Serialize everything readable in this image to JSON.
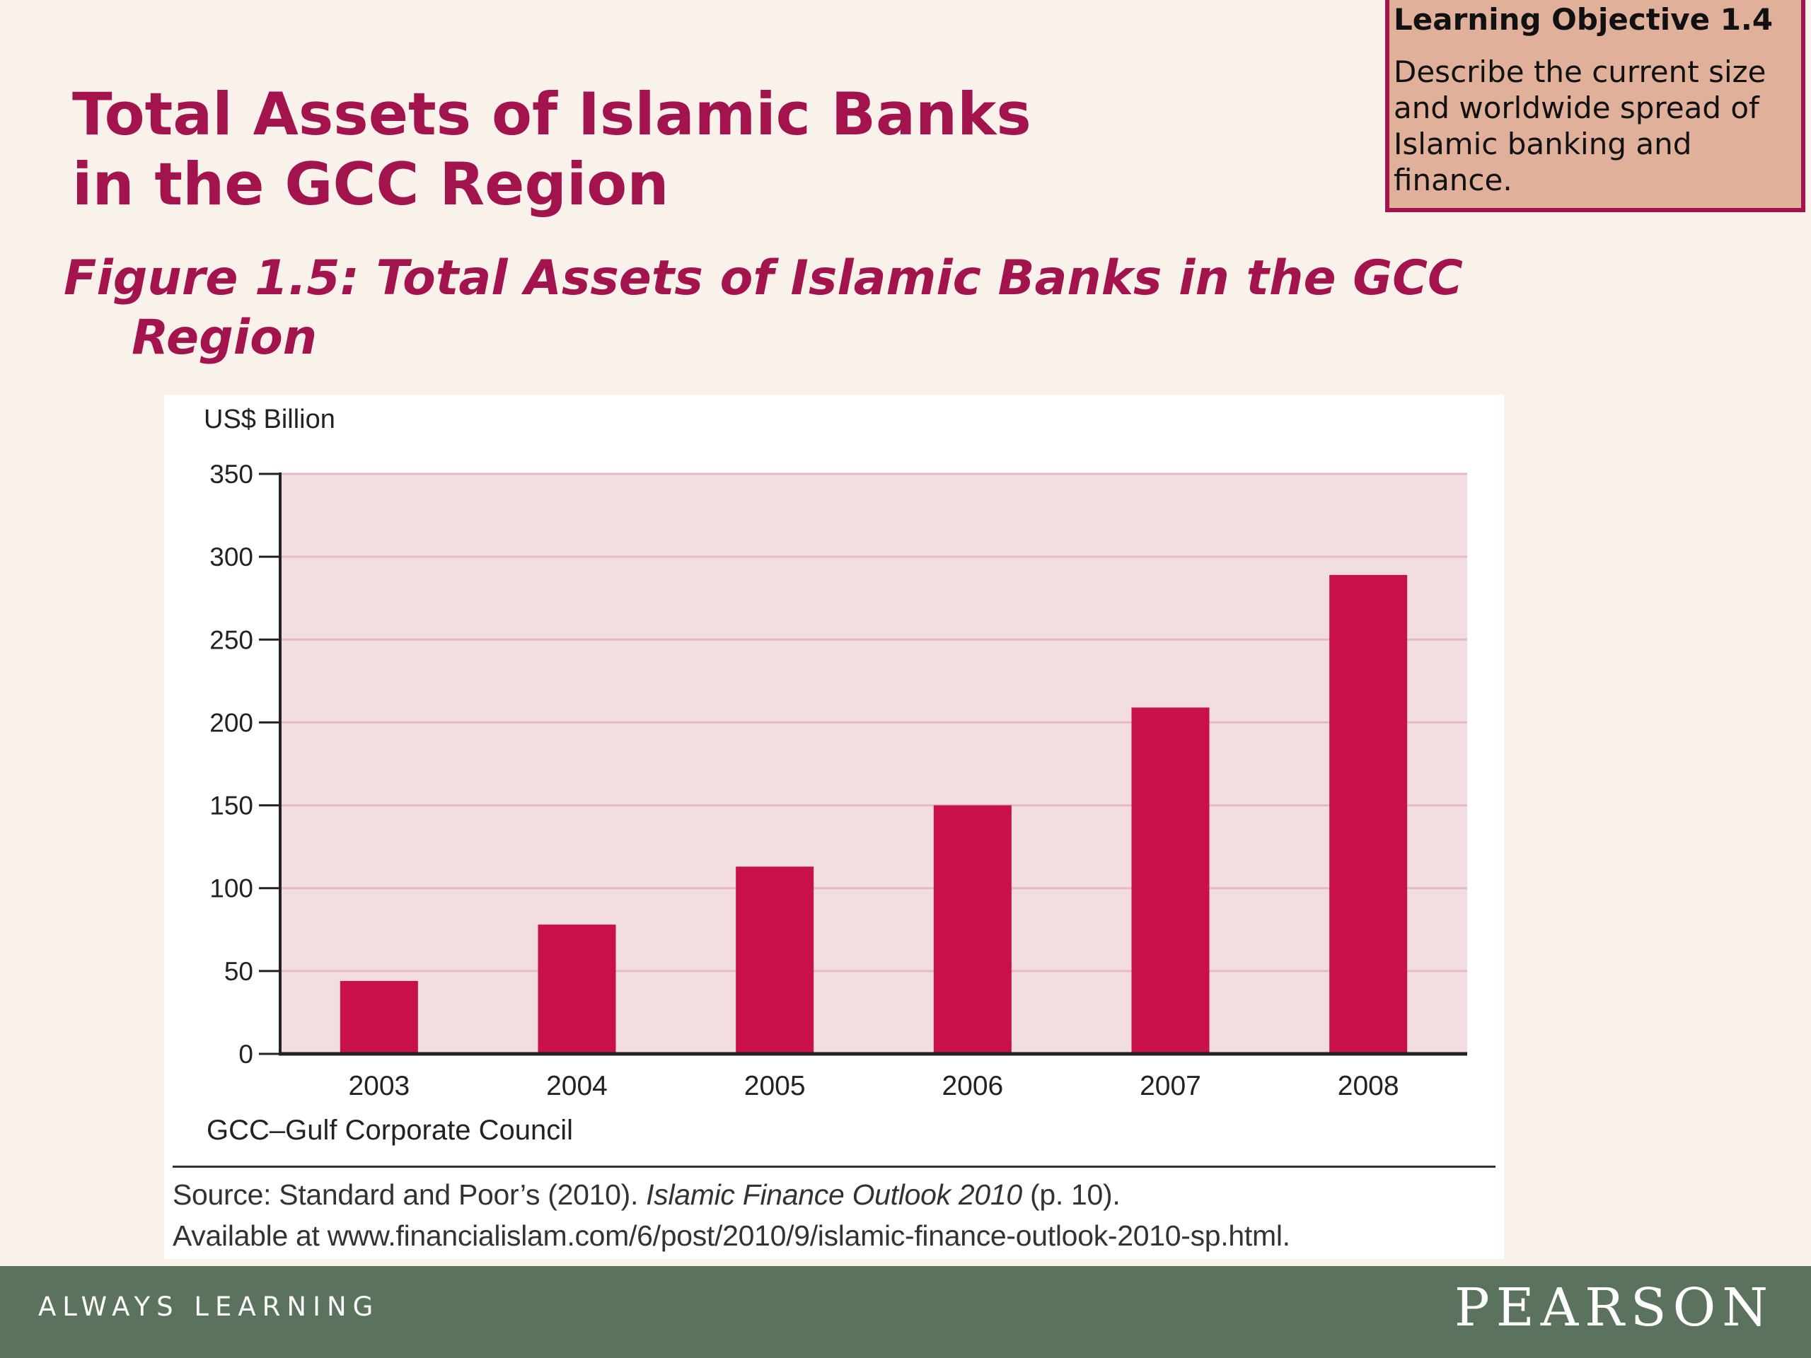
{
  "slide": {
    "title_line1": "Total Assets of Islamic Banks",
    "title_line2": "in the GCC Region",
    "figure_caption": "Figure 1.5: Total Assets of Islamic Banks in the GCC Region"
  },
  "objective": {
    "title": "Learning Objective 1.4",
    "text": "Describe the current size and worldwide spread of Islamic banking and finance."
  },
  "chart_data": {
    "type": "bar",
    "categories": [
      "2003",
      "2004",
      "2005",
      "2006",
      "2007",
      "2008"
    ],
    "values": [
      44,
      78,
      113,
      150,
      209,
      289
    ],
    "ylabel": "US$ Billion",
    "yticks": [
      "0",
      "50",
      "100",
      "150",
      "200",
      "250",
      "300",
      "350"
    ],
    "ylim": [
      0,
      350
    ],
    "grid": true,
    "colors": {
      "bar": "#c8104a",
      "plot_bg": "#f2dde0",
      "grid": "#e6b9c2"
    }
  },
  "footnote": "GCC–Gulf Corporate Council",
  "source": {
    "prefix": "Source: Standard and Poor’s (2010). ",
    "publication": "Islamic Finance Outlook 2010",
    "page": " (p. 10).",
    "line2": "Available at www.financialislam.com/6/post/2010/9/islamic-finance-outlook-2010-sp.html."
  },
  "footer": {
    "tagline": "ALWAYS LEARNING",
    "brand": "PEARSON",
    "color": "#5b735e"
  },
  "theme": {
    "accent": "#a3144f",
    "objective_bg": "#e0b09a"
  }
}
